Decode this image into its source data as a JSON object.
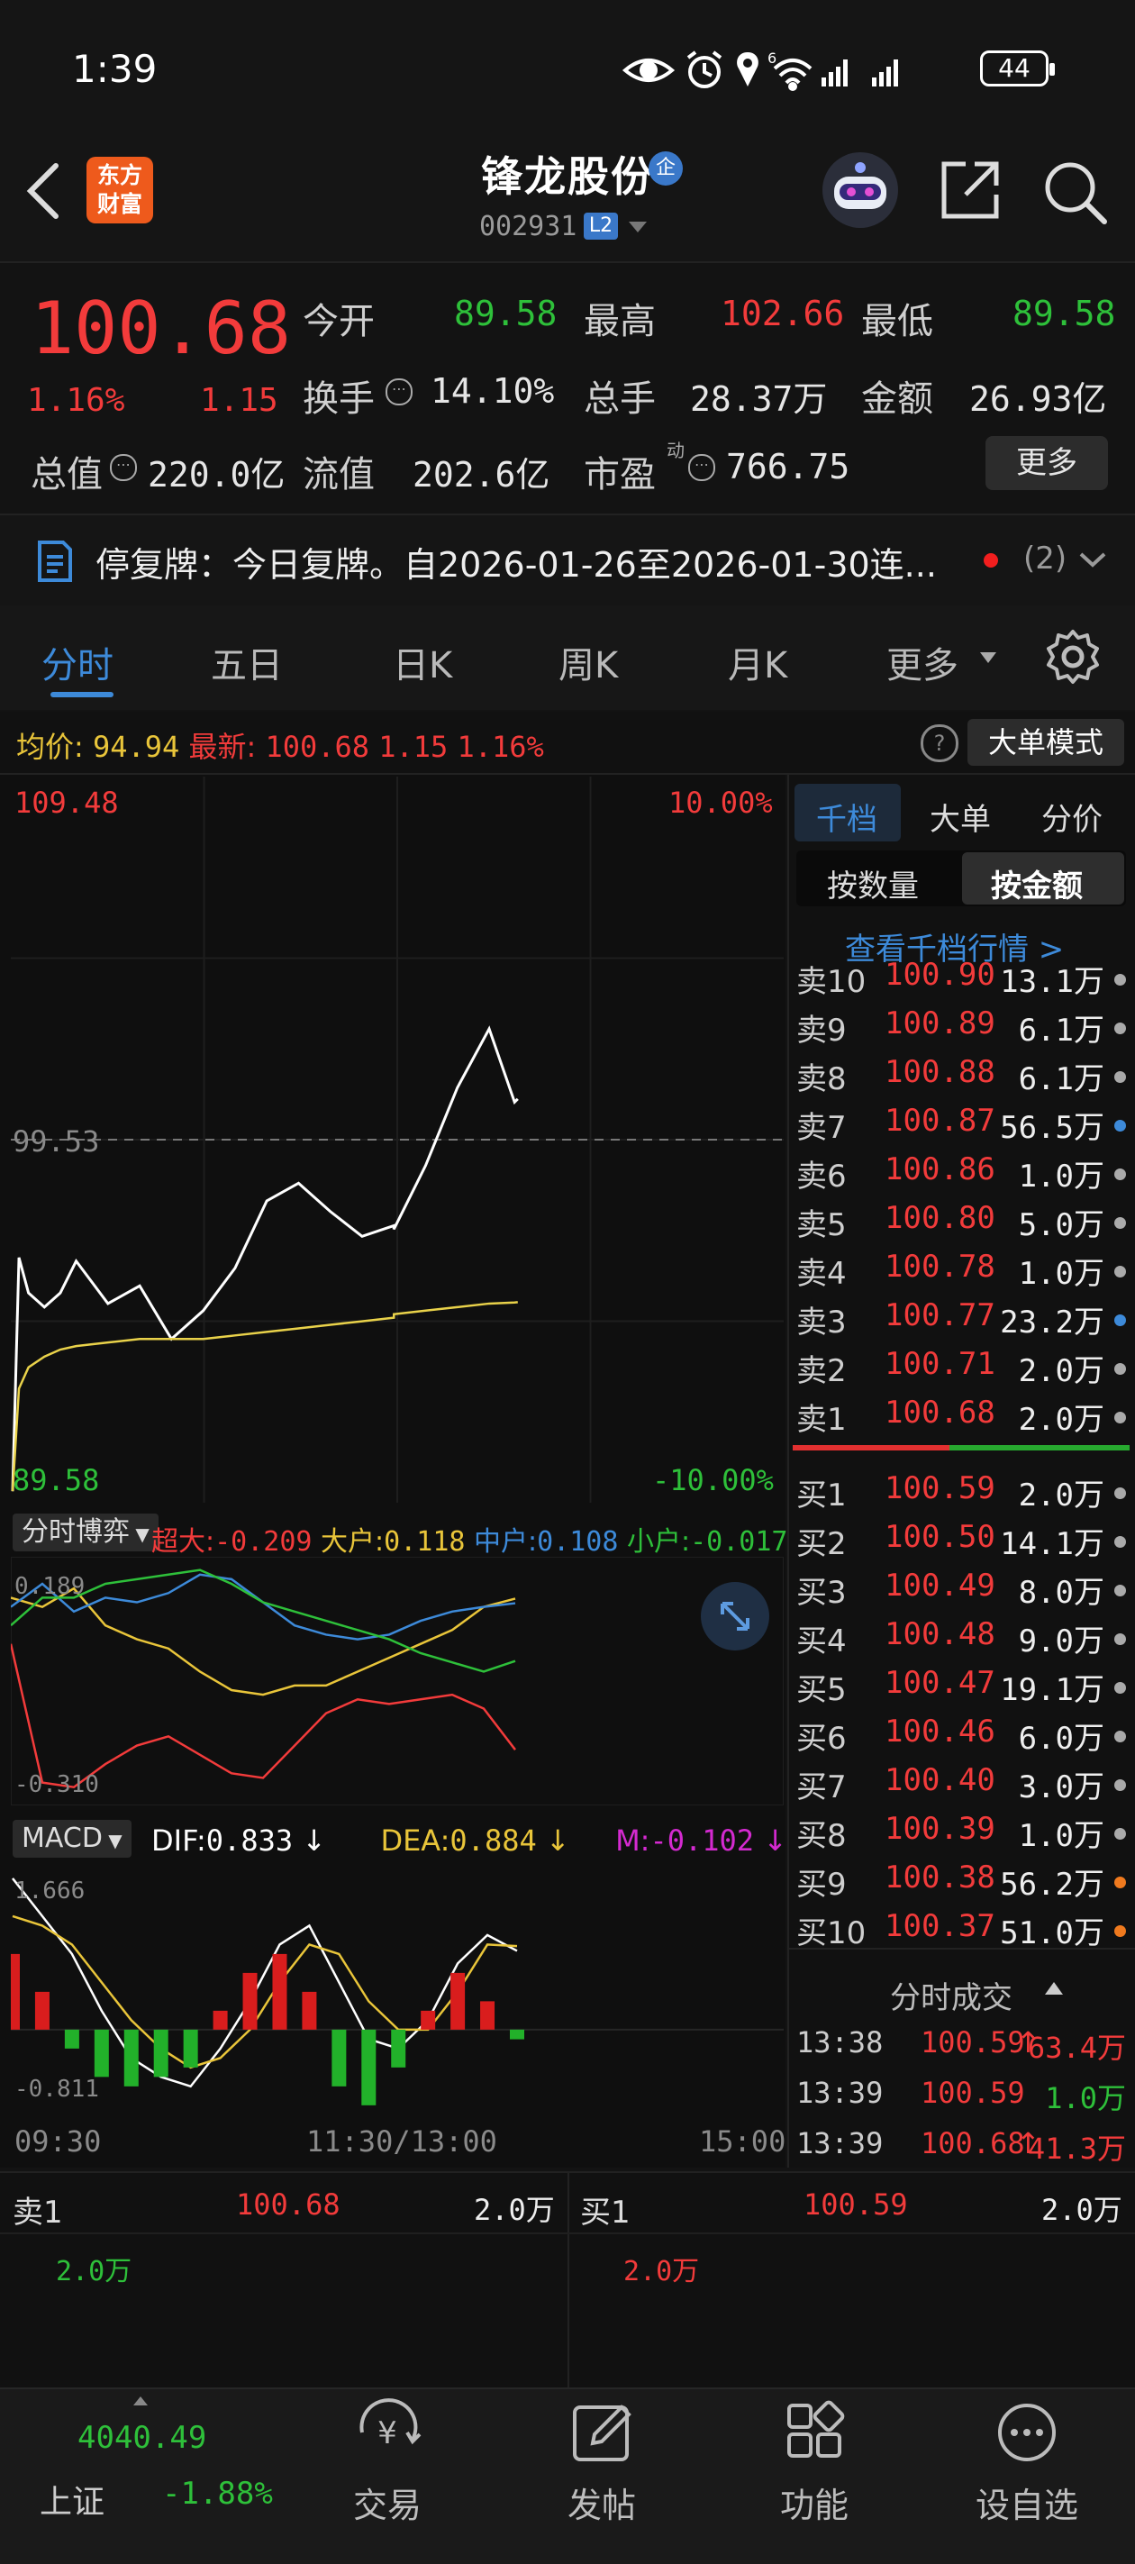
{
  "status_bar": {
    "time": "1:39",
    "battery": "44",
    "signal_tag": "6"
  },
  "header": {
    "logo_line1": "东方",
    "logo_line2": "财富",
    "stock_name": "锋龙股份",
    "badge": "企",
    "stock_code": "002931",
    "level_badge": "L2"
  },
  "quote": {
    "price": "100.68",
    "change_pct": "1.16%",
    "change": "1.15",
    "open_label": "今开",
    "open": "89.58",
    "high_label": "最高",
    "high": "102.66",
    "low_label": "最低",
    "low": "89.58",
    "turnover_label": "换手",
    "turnover": "14.10%",
    "volume_label": "总手",
    "volume": "28.37万",
    "amount_label": "金额",
    "amount": "26.93亿",
    "mktcap_label": "总值",
    "mktcap": "220.0亿",
    "float_label": "流值",
    "float": "202.6亿",
    "pe_label": "市盈",
    "pe_sup": "动",
    "pe": "766.75",
    "more_label": "更多"
  },
  "notice": {
    "text": "停复牌：今日复牌。自2026-01-26至2026-01-30连...",
    "count": "(2)"
  },
  "tabs": [
    {
      "label": "分时"
    },
    {
      "label": "五日"
    },
    {
      "label": "日K"
    },
    {
      "label": "周K"
    },
    {
      "label": "月K"
    },
    {
      "label": "更多"
    }
  ],
  "info_line": {
    "avg_label": "均价:",
    "avg": "94.94",
    "last_label": "最新:",
    "last": "100.68",
    "chg": "1.15",
    "chg_pct": "1.16%",
    "big_order_label": "大单模式"
  },
  "chart_axis": {
    "top_price": "109.48",
    "top_pct": "10.00%",
    "mid_price": "99.53",
    "bottom_price": "89.58",
    "bottom_pct": "-10.00%",
    "time_start": "09:30",
    "time_mid": "11:30/13:00",
    "time_end": "15:00"
  },
  "chart_data": [
    {
      "type": "line",
      "name": "分时",
      "ylim": [
        89.58,
        109.48
      ],
      "x": [
        "09:30",
        "09:32",
        "09:35",
        "09:40",
        "09:45",
        "09:50",
        "10:00",
        "10:10",
        "10:20",
        "10:30",
        "10:40",
        "10:50",
        "11:00",
        "11:10",
        "11:20",
        "11:30",
        "13:00",
        "13:10",
        "13:20",
        "13:30",
        "13:38",
        "13:39"
      ],
      "series": [
        {
          "name": "price",
          "color": "#ffffff",
          "values": [
            89.6,
            96.2,
            95.2,
            94.8,
            95.2,
            96.1,
            94.9,
            95.4,
            93.9,
            94.7,
            95.9,
            97.8,
            98.3,
            97.5,
            96.8,
            97.1,
            97.0,
            98.8,
            101.0,
            102.66,
            100.59,
            100.68
          ]
        },
        {
          "name": "avg",
          "color": "#e9d24a",
          "values": [
            89.6,
            92.5,
            93.1,
            93.4,
            93.6,
            93.7,
            93.8,
            93.9,
            93.9,
            93.9,
            94.0,
            94.1,
            94.2,
            94.3,
            94.4,
            94.5,
            94.6,
            94.7,
            94.8,
            94.9,
            94.93,
            94.94
          ]
        }
      ]
    },
    {
      "type": "line",
      "name": "分时博弈",
      "legend": [
        {
          "label": "超大:",
          "value": "-0.209",
          "color": "#f23b3b"
        },
        {
          "label": "大户:",
          "value": "0.118",
          "color": "#e9c53a"
        },
        {
          "label": "中户:",
          "value": "0.108",
          "color": "#3d8ad9"
        },
        {
          "label": "小户:",
          "value": "-0.017",
          "color": "#2ec03a"
        }
      ],
      "ylim": [
        -0.31,
        0.189
      ],
      "y_top_label": "0.189",
      "y_bottom_label": "-0.310",
      "series": [
        {
          "name": "超大",
          "color": "#f23b3b",
          "values": [
            0.02,
            -0.28,
            -0.29,
            -0.24,
            -0.2,
            -0.18,
            -0.22,
            -0.26,
            -0.27,
            -0.2,
            -0.13,
            -0.1,
            -0.11,
            -0.1,
            -0.09,
            -0.12,
            -0.209
          ]
        },
        {
          "name": "大户",
          "color": "#e9c53a",
          "values": [
            0.12,
            0.1,
            0.14,
            0.06,
            0.03,
            0.01,
            -0.04,
            -0.08,
            -0.09,
            -0.07,
            -0.07,
            -0.04,
            -0.01,
            0.02,
            0.05,
            0.1,
            0.118
          ]
        },
        {
          "name": "中户",
          "color": "#3d8ad9",
          "values": [
            0.1,
            0.15,
            0.09,
            0.12,
            0.11,
            0.13,
            0.17,
            0.16,
            0.11,
            0.06,
            0.04,
            0.03,
            0.04,
            0.07,
            0.09,
            0.1,
            0.108
          ]
        },
        {
          "name": "小户",
          "color": "#2ec03a",
          "values": [
            0.06,
            0.12,
            0.12,
            0.15,
            0.16,
            0.17,
            0.18,
            0.15,
            0.11,
            0.09,
            0.07,
            0.05,
            0.03,
            0.0,
            -0.02,
            -0.04,
            -0.017
          ]
        }
      ]
    },
    {
      "type": "line",
      "name": "MACD",
      "legend": [
        {
          "label": "DIF:",
          "value": "0.833",
          "color": "#ffffff",
          "arrow": "↓"
        },
        {
          "label": "DEA:",
          "value": "0.884",
          "color": "#e9c53a",
          "arrow": "↓"
        },
        {
          "label": "M:",
          "value": "-0.102",
          "color": "#d42ad0",
          "arrow": "↓"
        }
      ],
      "ylim": [
        -0.811,
        1.666
      ],
      "y_top_label": "1.666",
      "y_bottom_label": "-0.811",
      "series": [
        {
          "name": "DIF",
          "color": "#ffffff",
          "values": [
            1.6,
            1.2,
            0.8,
            0.2,
            -0.3,
            -0.5,
            -0.6,
            -0.2,
            0.3,
            0.9,
            1.1,
            0.5,
            -0.1,
            -0.2,
            0.1,
            0.7,
            1.0,
            0.833
          ]
        },
        {
          "name": "DEA",
          "color": "#e9c53a",
          "values": [
            1.2,
            1.1,
            0.9,
            0.5,
            0.1,
            -0.2,
            -0.4,
            -0.3,
            0.0,
            0.5,
            0.9,
            0.8,
            0.3,
            0.0,
            0.0,
            0.4,
            0.9,
            0.884
          ]
        },
        {
          "name": "M",
          "color": "#d42ad0",
          "bars": true,
          "values": [
            0.8,
            0.4,
            -0.2,
            -0.5,
            -0.6,
            -0.5,
            -0.4,
            0.2,
            0.6,
            0.8,
            0.4,
            -0.6,
            -0.8,
            -0.4,
            0.2,
            0.6,
            0.3,
            -0.102
          ]
        }
      ]
    }
  ],
  "sub_chart_labels": {
    "game_label": "分时博弈",
    "macd_label": "MACD"
  },
  "order_book": {
    "tabs": [
      "千档",
      "大单",
      "分价"
    ],
    "subtabs": [
      "按数量",
      "按金额"
    ],
    "link": "查看千档行情 >",
    "sells": [
      {
        "label": "卖10",
        "price": "100.90",
        "vol": "13.1万",
        "dot": "#aaaaaa"
      },
      {
        "label": "卖9",
        "price": "100.89",
        "vol": "6.1万",
        "dot": "#aaaaaa"
      },
      {
        "label": "卖8",
        "price": "100.88",
        "vol": "6.1万",
        "dot": "#aaaaaa"
      },
      {
        "label": "卖7",
        "price": "100.87",
        "vol": "56.5万",
        "dot": "#3d8ad9"
      },
      {
        "label": "卖6",
        "price": "100.86",
        "vol": "1.0万",
        "dot": "#aaaaaa"
      },
      {
        "label": "卖5",
        "price": "100.80",
        "vol": "5.0万",
        "dot": "#aaaaaa"
      },
      {
        "label": "卖4",
        "price": "100.78",
        "vol": "1.0万",
        "dot": "#aaaaaa"
      },
      {
        "label": "卖3",
        "price": "100.77",
        "vol": "23.2万",
        "dot": "#3d8ad9"
      },
      {
        "label": "卖2",
        "price": "100.71",
        "vol": "2.0万",
        "dot": "#aaaaaa"
      },
      {
        "label": "卖1",
        "price": "100.68",
        "vol": "2.0万",
        "dot": "#aaaaaa"
      }
    ],
    "buys": [
      {
        "label": "买1",
        "price": "100.59",
        "vol": "2.0万",
        "dot": "#aaaaaa"
      },
      {
        "label": "买2",
        "price": "100.50",
        "vol": "14.1万",
        "dot": "#aaaaaa"
      },
      {
        "label": "买3",
        "price": "100.49",
        "vol": "8.0万",
        "dot": "#aaaaaa"
      },
      {
        "label": "买4",
        "price": "100.48",
        "vol": "9.0万",
        "dot": "#aaaaaa"
      },
      {
        "label": "买5",
        "price": "100.47",
        "vol": "19.1万",
        "dot": "#aaaaaa"
      },
      {
        "label": "买6",
        "price": "100.46",
        "vol": "6.0万",
        "dot": "#aaaaaa"
      },
      {
        "label": "买7",
        "price": "100.40",
        "vol": "3.0万",
        "dot": "#aaaaaa"
      },
      {
        "label": "买8",
        "price": "100.39",
        "vol": "1.0万",
        "dot": "#aaaaaa"
      },
      {
        "label": "买9",
        "price": "100.38",
        "vol": "56.2万",
        "dot": "#f07a1e"
      },
      {
        "label": "买10",
        "price": "100.37",
        "vol": "51.0万",
        "dot": "#f07a1e"
      }
    ],
    "trades_title": "分时成交",
    "trades": [
      {
        "time": "13:38",
        "price": "100.59",
        "arrow": "↑",
        "vol": "63.4万",
        "color": "#f23b3b"
      },
      {
        "time": "13:39",
        "price": "100.59",
        "arrow": "",
        "vol": "1.0万",
        "color": "#2ec03a"
      },
      {
        "time": "13:39",
        "price": "100.68",
        "arrow": "↑",
        "vol": "41.3万",
        "color": "#f23b3b"
      }
    ]
  },
  "bottom_quote": {
    "sell_label": "卖1",
    "sell_price": "100.68",
    "sell_vol": "2.0万",
    "sell_vol2": "2.0万",
    "buy_label": "买1",
    "buy_price": "100.59",
    "buy_vol": "2.0万",
    "buy_vol2": "2.0万"
  },
  "bottom_nav": {
    "index_value": "4040.49",
    "index_name": "上证",
    "index_change": "-1.88%",
    "items": [
      {
        "label": "交易",
        "icon": "yen-exchange-icon"
      },
      {
        "label": "发帖",
        "icon": "compose-icon"
      },
      {
        "label": "功能",
        "icon": "grid-icon"
      },
      {
        "label": "设自选",
        "icon": "more-dots-icon"
      }
    ]
  }
}
